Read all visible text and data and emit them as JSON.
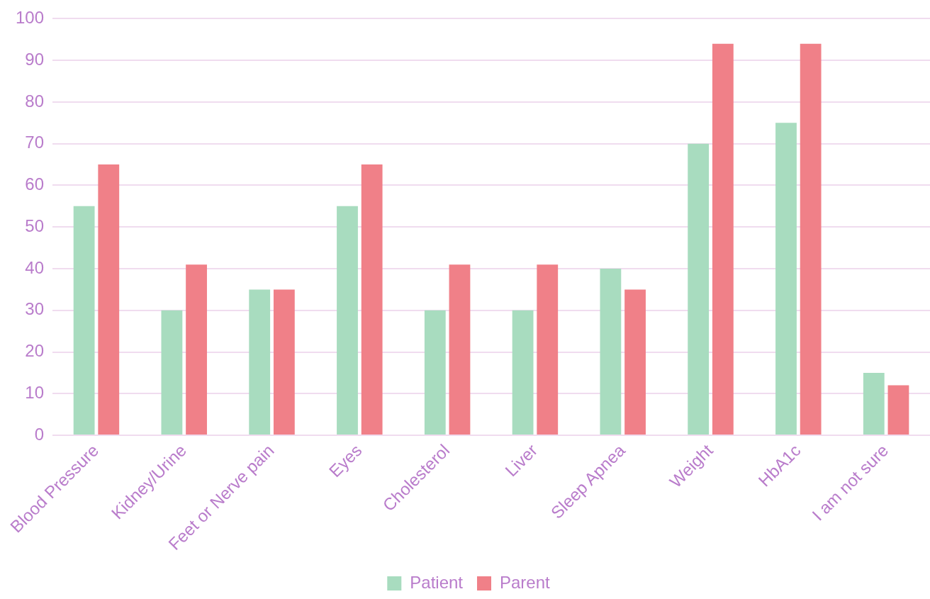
{
  "chart_data": {
    "type": "bar",
    "categories": [
      "Blood Pressure",
      "Kidney/Urine",
      "Feet or Nerve pain",
      "Eyes",
      "Cholesterol",
      "Liver",
      "Sleep Apnea",
      "Weight",
      "HbA1c",
      "I am not sure"
    ],
    "series": [
      {
        "name": "Patient",
        "color": "#a8dcbf",
        "values": [
          55,
          30,
          35,
          55,
          30,
          30,
          40,
          70,
          75,
          15
        ]
      },
      {
        "name": "Parent",
        "color": "#f08088",
        "values": [
          65,
          41,
          35,
          65,
          41,
          41,
          35,
          94,
          94,
          12
        ]
      }
    ],
    "ylim": [
      0,
      100
    ],
    "yticks": [
      0,
      10,
      20,
      30,
      40,
      50,
      60,
      70,
      80,
      90,
      100
    ],
    "grid": "y",
    "legend": "bottom"
  }
}
